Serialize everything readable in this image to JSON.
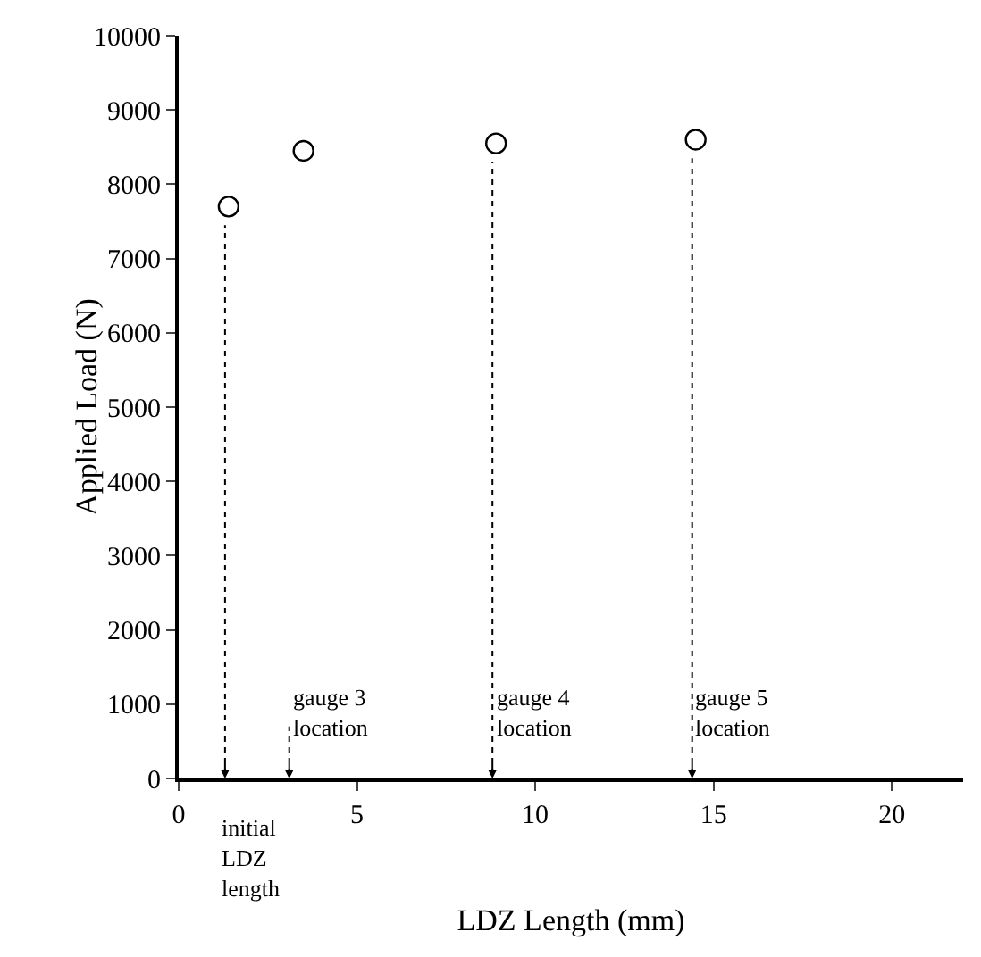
{
  "chart_data": {
    "type": "scatter",
    "xlabel": "LDZ Length (mm)",
    "ylabel": "Applied Load (N)",
    "x": [
      1.4,
      3.5,
      8.9,
      14.5
    ],
    "values": [
      7700,
      8450,
      8550,
      8600
    ],
    "color": "#000000",
    "marker": "circle",
    "xlim": [
      0,
      22
    ],
    "xticks": [
      0,
      5,
      10,
      15,
      20
    ],
    "ylim": [
      0,
      10000
    ],
    "yticks": [
      0,
      1000,
      2000,
      3000,
      4000,
      5000,
      6000,
      7000,
      8000,
      9000,
      10000
    ],
    "grid": false,
    "ref_lines": [
      {
        "axis": "x",
        "value": 1.3,
        "label": "initial LDZ length",
        "line_style": "dashed"
      },
      {
        "axis": "x",
        "value": 3.1,
        "label": "gauge 3 location",
        "line_style": "dashed"
      },
      {
        "axis": "x",
        "value": 8.8,
        "label": "gauge 4 location",
        "line_style": "dashed"
      },
      {
        "axis": "x",
        "value": 14.4,
        "label": "gauge 5 location",
        "line_style": "dashed"
      }
    ]
  }
}
